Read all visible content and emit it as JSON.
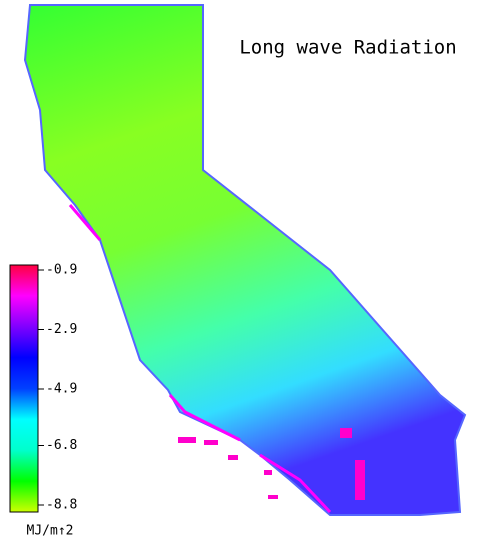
{
  "title": "Long wave Radiation",
  "colorbar": {
    "unit": "MJ/m↑2",
    "range": [
      -8.8,
      -0.9
    ],
    "ticks": [
      -0.9,
      -2.9,
      -4.9,
      -6.8,
      -8.8
    ],
    "colors": [
      "#ccff00",
      "#00ff00",
      "#00ffcc",
      "#00ffff",
      "#0040ff",
      "#0000ff",
      "#8000ff",
      "#ff00ff",
      "#ff0040"
    ]
  }
}
